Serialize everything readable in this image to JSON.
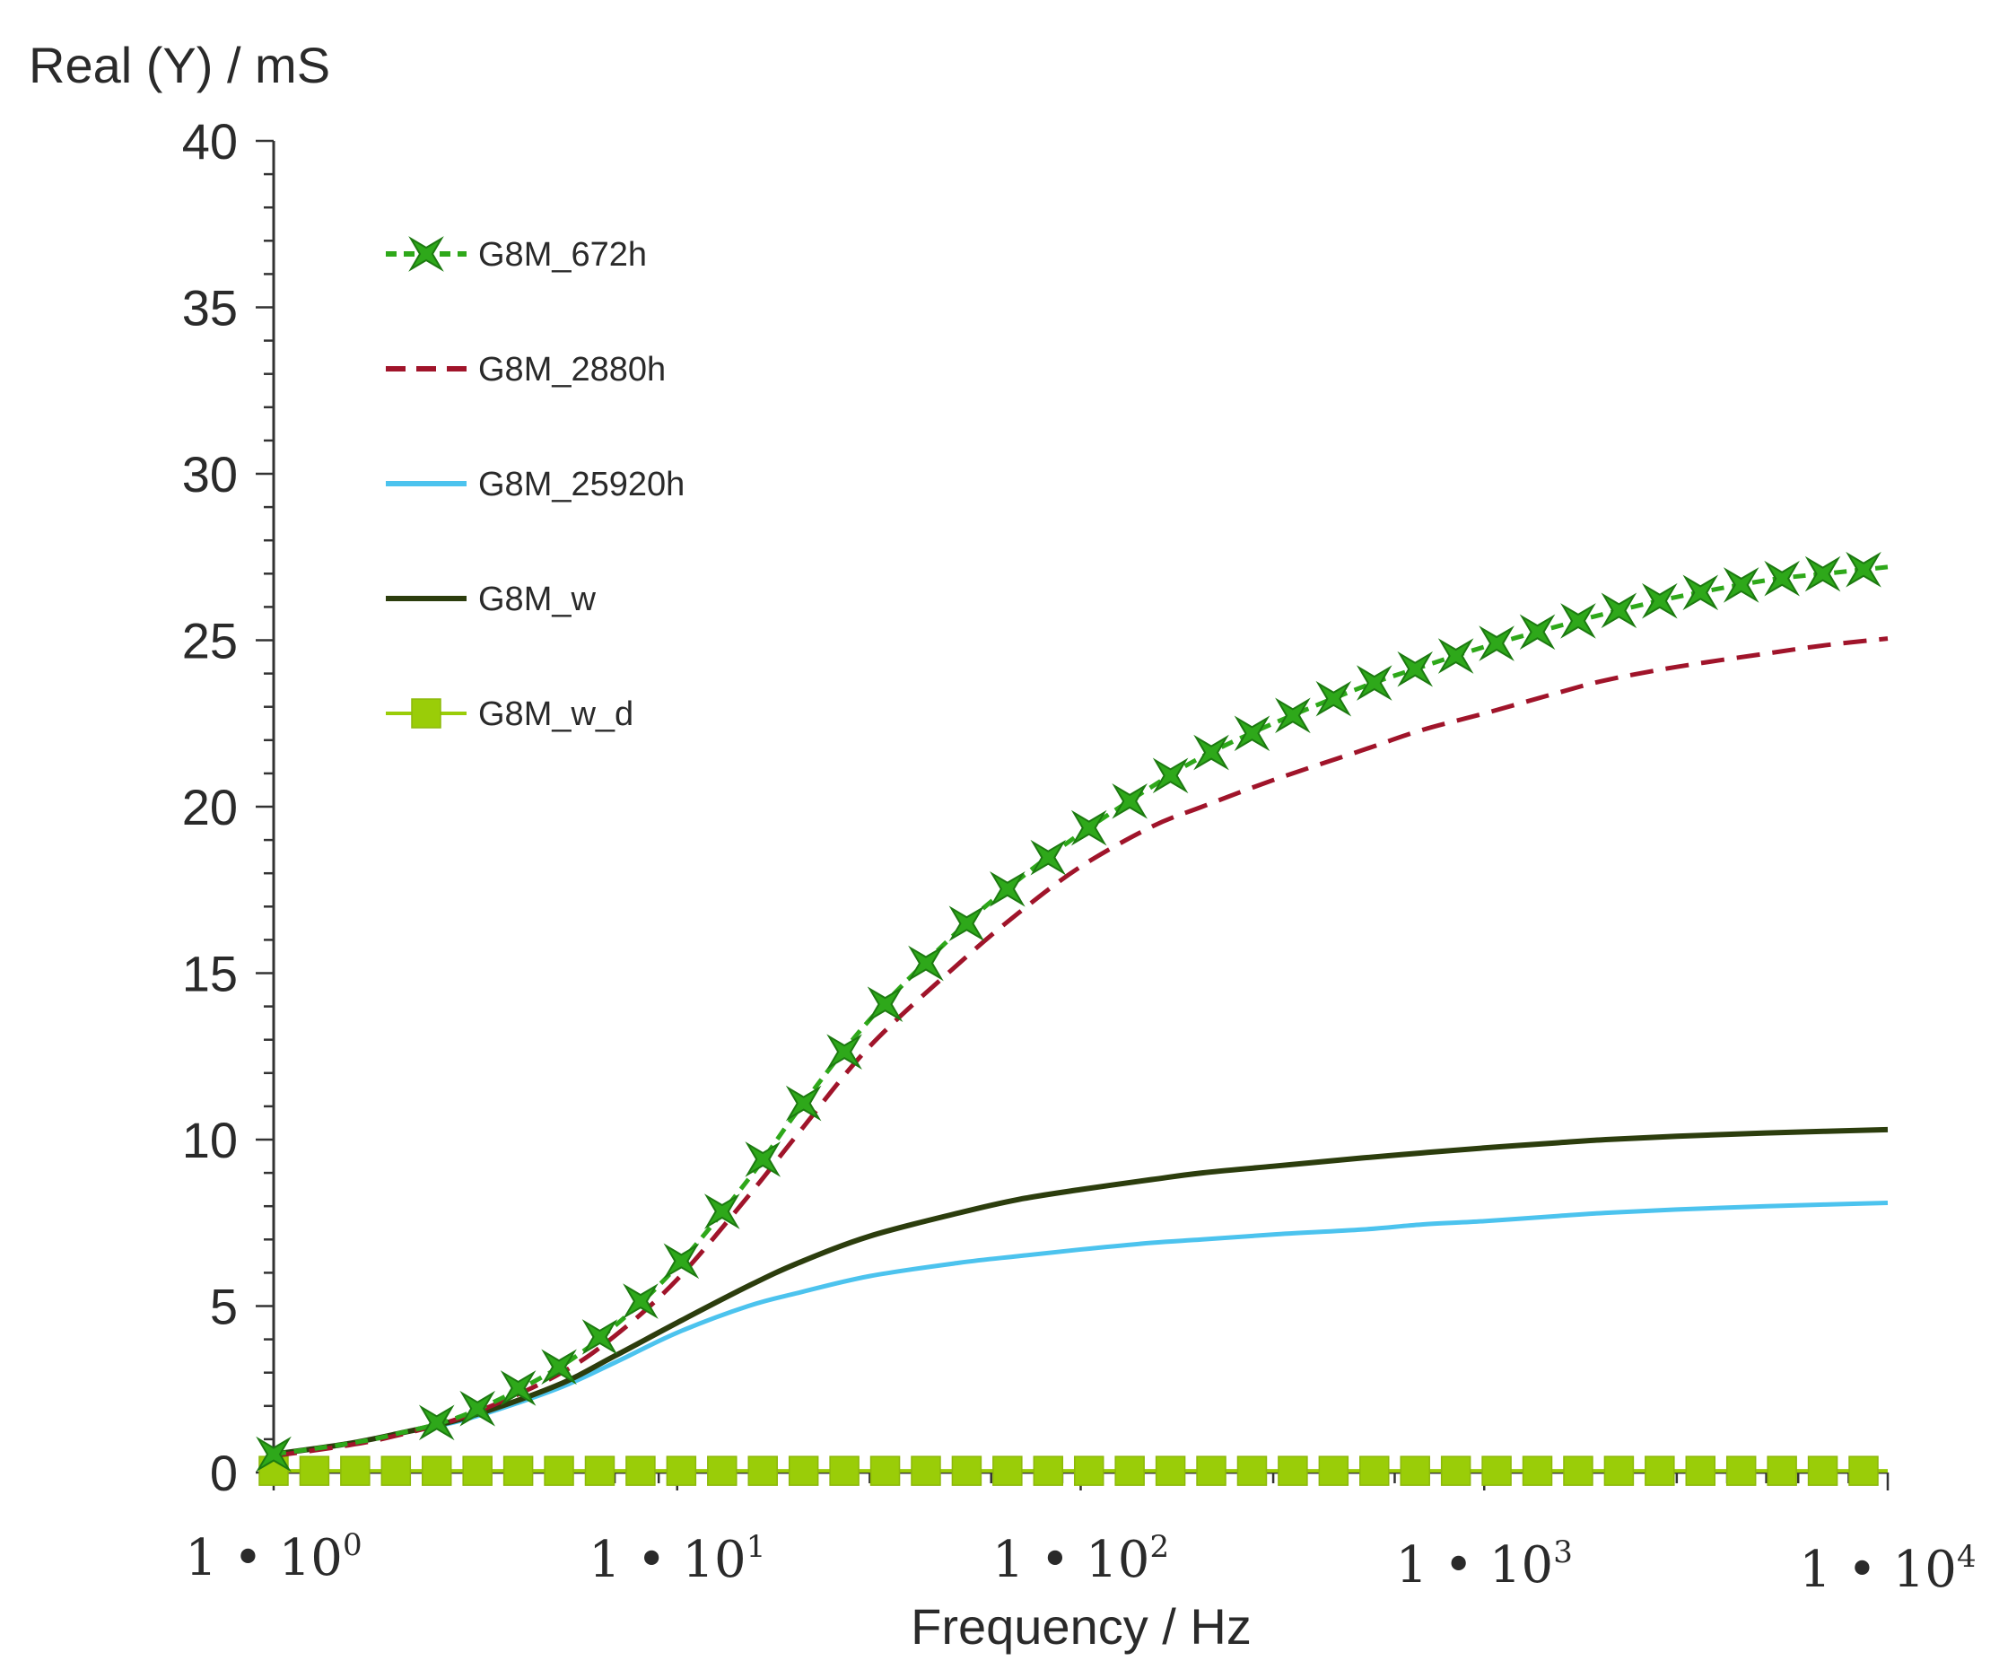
{
  "chart_data": {
    "type": "line",
    "title": "",
    "ylabel": "Real (Y) / mS",
    "xlabel": "Frequency / Hz",
    "xscale": "log",
    "xlim": [
      1,
      10000
    ],
    "ylim": [
      0,
      40
    ],
    "yticks": [
      0,
      5,
      10,
      15,
      20,
      25,
      30,
      35,
      40
    ],
    "xticks": [
      {
        "value": 1,
        "base": "1 • 10",
        "exp": "0"
      },
      {
        "value": 10,
        "base": "1 • 10",
        "exp": "1"
      },
      {
        "value": 100,
        "base": "1 • 10",
        "exp": "2"
      },
      {
        "value": 1000,
        "base": "1 • 10",
        "exp": "3"
      },
      {
        "value": 10000,
        "base": "1 • 10",
        "exp": "4"
      }
    ],
    "grid": false,
    "legend_position": "top-left",
    "x": [
      1,
      1.5,
      2,
      3,
      5,
      7,
      10,
      15,
      20,
      30,
      50,
      70,
      100,
      150,
      200,
      300,
      500,
      700,
      1000,
      1500,
      2000,
      3000,
      5000,
      7000,
      10000
    ],
    "series": [
      {
        "name": "G8M_672h",
        "color": "#2ea81a",
        "style": "dashed-markers",
        "marker": "star",
        "values": [
          0.55,
          0.85,
          1.15,
          1.75,
          3.1,
          4.4,
          6.2,
          8.8,
          10.9,
          13.6,
          16.3,
          17.8,
          19.2,
          20.6,
          21.5,
          22.5,
          23.6,
          24.2,
          24.8,
          25.4,
          25.8,
          26.3,
          26.8,
          27.0,
          27.2
        ]
      },
      {
        "name": "G8M_2880h",
        "color": "#a0142a",
        "style": "dashed",
        "values": [
          0.5,
          0.8,
          1.1,
          1.7,
          2.9,
          4.1,
          5.8,
          8.3,
          10.2,
          12.8,
          15.3,
          16.8,
          18.2,
          19.4,
          20.0,
          20.8,
          21.7,
          22.3,
          22.8,
          23.4,
          23.8,
          24.2,
          24.6,
          24.85,
          25.05
        ]
      },
      {
        "name": "G8M_25920h",
        "color": "#4cc3ee",
        "style": "solid",
        "values": [
          0.55,
          0.85,
          1.15,
          1.6,
          2.5,
          3.3,
          4.2,
          5.0,
          5.4,
          5.9,
          6.3,
          6.5,
          6.7,
          6.9,
          7.0,
          7.15,
          7.3,
          7.45,
          7.55,
          7.7,
          7.8,
          7.9,
          8.0,
          8.05,
          8.1
        ]
      },
      {
        "name": "G8M_w",
        "color": "#2c3d0d",
        "style": "solid",
        "values": [
          0.55,
          0.85,
          1.15,
          1.65,
          2.6,
          3.5,
          4.5,
          5.6,
          6.3,
          7.1,
          7.8,
          8.2,
          8.5,
          8.8,
          9.0,
          9.2,
          9.45,
          9.6,
          9.75,
          9.9,
          10.0,
          10.1,
          10.2,
          10.25,
          10.3
        ]
      },
      {
        "name": "G8M_w_d",
        "color": "#9acd08",
        "style": "solid-markers",
        "marker": "square",
        "values": [
          0.05,
          0.05,
          0.05,
          0.05,
          0.05,
          0.05,
          0.05,
          0.05,
          0.05,
          0.05,
          0.05,
          0.05,
          0.05,
          0.05,
          0.05,
          0.05,
          0.05,
          0.05,
          0.05,
          0.05,
          0.05,
          0.05,
          0.05,
          0.05,
          0.05
        ]
      }
    ]
  }
}
